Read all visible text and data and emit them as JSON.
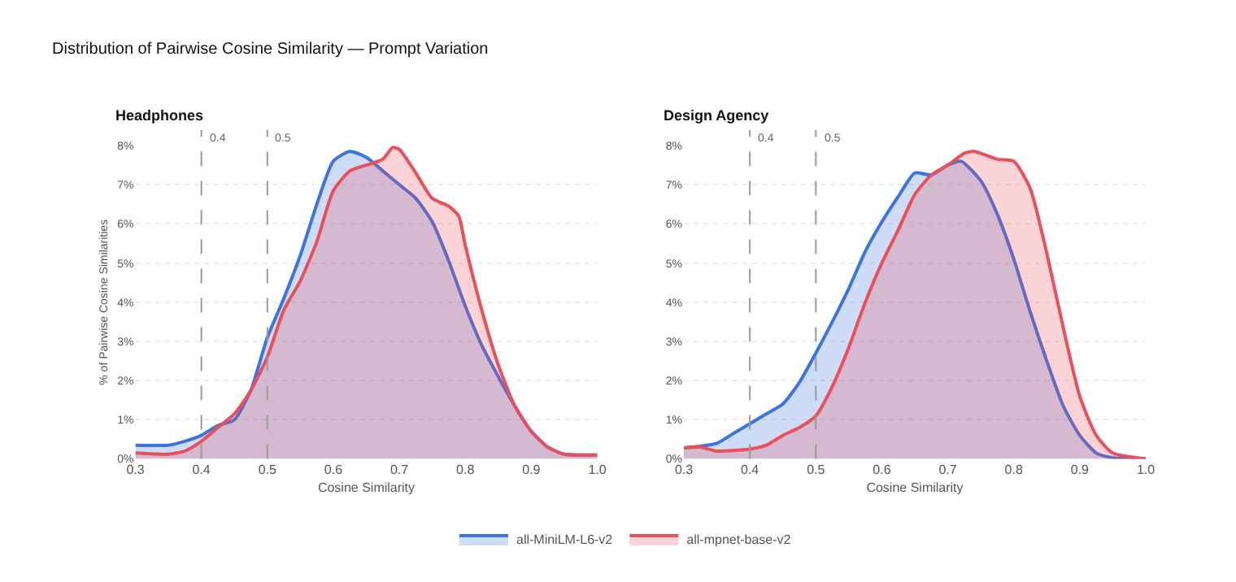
{
  "chart_data": [
    {
      "type": "area",
      "title": "Distribution of Pairwise Cosine Similarity — Prompt Variation",
      "subtitle": "Headphones",
      "xlabel": "Cosine Similarity",
      "ylabel": "% of Pairwise Cosine Similarities",
      "xlim": [
        0.3,
        1.0
      ],
      "xticks": [
        0.3,
        0.4,
        0.5,
        0.6,
        0.7,
        0.8,
        0.9,
        {
          "value": 1.0,
          "label": "1.0"
        }
      ],
      "ylim": [
        0,
        8
      ],
      "yticks": [
        {
          "value": 0,
          "label": "0%"
        },
        {
          "value": 1,
          "label": "1%"
        },
        {
          "value": 2,
          "label": "2%"
        },
        {
          "value": 3,
          "label": "3%"
        },
        {
          "value": 4,
          "label": "4%"
        },
        {
          "value": 5,
          "label": "5%"
        },
        {
          "value": 6,
          "label": "6%"
        },
        {
          "value": 7,
          "label": "7%"
        },
        {
          "value": 8,
          "label": "8%"
        }
      ],
      "grid": "y",
      "legend": "bottom",
      "ref_lines": [
        {
          "axis": "x",
          "value": 0.4,
          "label": "0.4",
          "color": "#9a9a9a",
          "line_style": "dashed"
        },
        {
          "axis": "x",
          "value": 0.5,
          "label": "0.5",
          "color": "#9a9a9a",
          "line_style": "dashed"
        }
      ],
      "series": [
        {
          "name": "all-MiniLM-L6-v2",
          "color": "#3b73e0",
          "x": [
            0.3,
            0.35,
            0.375,
            0.4,
            0.425,
            0.45,
            0.475,
            0.5,
            0.525,
            0.55,
            0.575,
            0.6,
            0.625,
            0.65,
            0.675,
            0.7,
            0.725,
            0.75,
            0.775,
            0.8,
            0.825,
            0.85,
            0.875,
            0.9,
            0.925,
            0.95,
            1.0
          ],
          "values": [
            0.35,
            0.35,
            0.45,
            0.6,
            0.85,
            1.0,
            1.75,
            3.1,
            4.1,
            5.2,
            6.5,
            7.6,
            7.85,
            7.7,
            7.35,
            7.0,
            6.65,
            6.05,
            5.05,
            3.9,
            2.9,
            2.1,
            1.35,
            0.7,
            0.3,
            0.12,
            0.1
          ]
        },
        {
          "name": "all-mpnet-base-v2",
          "color": "#e8505b",
          "x": [
            0.3,
            0.35,
            0.375,
            0.4,
            0.425,
            0.45,
            0.475,
            0.5,
            0.525,
            0.55,
            0.575,
            0.6,
            0.625,
            0.65,
            0.675,
            0.69,
            0.7,
            0.725,
            0.75,
            0.775,
            0.79,
            0.8,
            0.825,
            0.85,
            0.875,
            0.9,
            0.925,
            0.95,
            1.0
          ],
          "values": [
            0.15,
            0.12,
            0.2,
            0.45,
            0.8,
            1.15,
            1.75,
            2.6,
            3.8,
            4.55,
            5.55,
            6.85,
            7.35,
            7.5,
            7.65,
            7.95,
            7.9,
            7.3,
            6.65,
            6.45,
            6.2,
            5.45,
            3.8,
            2.4,
            1.35,
            0.7,
            0.3,
            0.12,
            0.1
          ]
        }
      ]
    },
    {
      "type": "area",
      "subtitle": "Design Agency",
      "xlabel": "Cosine Similarity",
      "xlim": [
        0.3,
        1.0
      ],
      "xticks": [
        0.3,
        0.4,
        0.5,
        0.6,
        0.7,
        0.8,
        0.9,
        {
          "value": 1.0,
          "label": "1.0"
        }
      ],
      "ylim": [
        0,
        8
      ],
      "yticks": [
        {
          "value": 0,
          "label": "0%"
        },
        {
          "value": 1,
          "label": "1%"
        },
        {
          "value": 2,
          "label": "2%"
        },
        {
          "value": 3,
          "label": "3%"
        },
        {
          "value": 4,
          "label": "4%"
        },
        {
          "value": 5,
          "label": "5%"
        },
        {
          "value": 6,
          "label": "6%"
        },
        {
          "value": 7,
          "label": "7%"
        },
        {
          "value": 8,
          "label": "8%"
        }
      ],
      "grid": "y",
      "ref_lines": [
        {
          "axis": "x",
          "value": 0.4,
          "label": "0.4",
          "color": "#9a9a9a",
          "line_style": "dashed"
        },
        {
          "axis": "x",
          "value": 0.5,
          "label": "0.5",
          "color": "#9a9a9a",
          "line_style": "dashed"
        }
      ],
      "series": [
        {
          "color": "#3b73e0",
          "x": [
            0.3,
            0.35,
            0.375,
            0.4,
            0.425,
            0.45,
            0.475,
            0.5,
            0.525,
            0.55,
            0.575,
            0.6,
            0.625,
            0.65,
            0.675,
            0.7,
            0.72,
            0.75,
            0.775,
            0.8,
            0.825,
            0.85,
            0.875,
            0.9,
            0.925,
            0.95,
            1.0
          ],
          "values": [
            0.28,
            0.4,
            0.65,
            0.9,
            1.15,
            1.4,
            1.95,
            2.7,
            3.5,
            4.35,
            5.3,
            6.05,
            6.7,
            7.3,
            7.25,
            7.5,
            7.6,
            7.1,
            6.25,
            5.1,
            3.75,
            2.5,
            1.35,
            0.6,
            0.15,
            0.03,
            0
          ]
        },
        {
          "color": "#e8505b",
          "x": [
            0.3,
            0.325,
            0.35,
            0.4,
            0.425,
            0.45,
            0.475,
            0.5,
            0.525,
            0.55,
            0.575,
            0.6,
            0.625,
            0.65,
            0.675,
            0.7,
            0.725,
            0.74,
            0.775,
            0.8,
            0.825,
            0.85,
            0.875,
            0.9,
            0.925,
            0.95,
            1.0
          ],
          "values": [
            0.28,
            0.3,
            0.2,
            0.25,
            0.35,
            0.6,
            0.8,
            1.1,
            1.85,
            2.85,
            4.0,
            5.0,
            5.85,
            6.75,
            7.25,
            7.5,
            7.8,
            7.85,
            7.65,
            7.6,
            6.9,
            5.25,
            3.35,
            1.6,
            0.6,
            0.15,
            0
          ]
        }
      ]
    }
  ]
}
